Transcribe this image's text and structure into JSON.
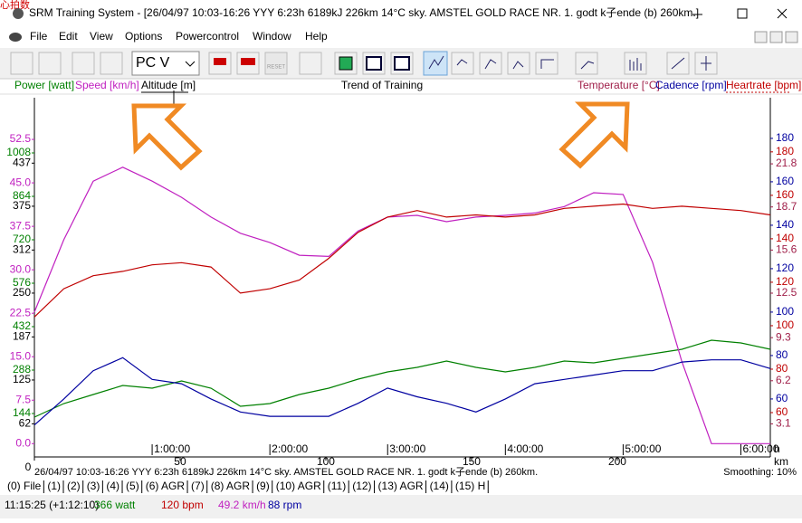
{
  "window": {
    "corner_text": "心拍数",
    "title": "SRM Training System - [26/04/97 10:03-16:26 YYY 6:23h 6189kJ 226km 14°C sky. AMSTEL GOLD RACE NR. 1. godt k子ende (b) 260km.]",
    "menu": [
      "File",
      "Edit",
      "View",
      "Options",
      "Powercontrol",
      "Window",
      "Help"
    ],
    "selector": "PC V",
    "reset_button": "RESET"
  },
  "chart_data": {
    "type": "line",
    "title": "Trend of Training",
    "x": [
      0,
      0.25,
      0.5,
      0.75,
      1,
      1.25,
      1.5,
      1.75,
      2,
      2.25,
      2.5,
      2.75,
      3,
      3.25,
      3.5,
      3.75,
      4,
      4.25,
      4.5,
      4.75,
      5,
      5.25,
      5.5,
      5.75,
      6,
      6.25
    ],
    "xlim": [
      0,
      6.25
    ],
    "x_unit": "h",
    "xticks": [
      {
        "value": 1,
        "label": "1:00:00"
      },
      {
        "value": 2,
        "label": "2:00:00"
      },
      {
        "value": 3,
        "label": "3:00:00"
      },
      {
        "value": 4,
        "label": "4:00:00"
      },
      {
        "value": 5,
        "label": "5:00:00"
      },
      {
        "value": 6,
        "label": "6:00:00"
      }
    ],
    "x2lim": [
      0,
      252.5
    ],
    "x2_unit": "km",
    "x2ticks": [
      0,
      50,
      100,
      150,
      200
    ],
    "axes": [
      {
        "label": "Power [watt]",
        "color": "#008000",
        "side": "left",
        "ylim": [
          0,
          1170
        ],
        "yticks": [
          144,
          288,
          432,
          576,
          720,
          864,
          1008
        ],
        "values": [
          132,
          177,
          207,
          237,
          228,
          252,
          228,
          168,
          177,
          207,
          228,
          258,
          282,
          297,
          318,
          297,
          282,
          297,
          318,
          312,
          327,
          342,
          357,
          387,
          378,
          357
        ]
      },
      {
        "label": "Speed [km/h]",
        "color": "#c020c0",
        "side": "left",
        "ylim": [
          -2.3,
          58.6
        ],
        "yticks": [
          {
            "value": 0,
            "label": "0.0"
          },
          7.5,
          {
            "value": 15,
            "label": "15.0"
          },
          22.5,
          {
            "value": 30,
            "label": "30.0"
          },
          37.5,
          {
            "value": 45,
            "label": "45.0"
          },
          52.5
        ],
        "values": [
          22.7,
          35.2,
          45.3,
          47.7,
          45.3,
          42.5,
          39.1,
          36.3,
          34.7,
          32.5,
          32.3,
          36.7,
          39.1,
          39.4,
          38.3,
          39.1,
          39.4,
          39.8,
          40.9,
          43.3,
          43.0,
          31.3,
          14.1,
          0,
          0,
          0
        ]
      },
      {
        "label": "Altitude [m]",
        "color": "#000000",
        "side": "left",
        "ylim": [
          14.3,
          522
        ],
        "yticks": [
          62,
          125,
          187,
          250,
          312,
          375,
          437
        ]
      },
      {
        "label": "Temperature [°C]",
        "color": "#a0204a",
        "side": "right",
        "ylim": [
          0.72,
          26.1
        ],
        "yticks": [
          3.1,
          6.2,
          9.3,
          12.5,
          15.6,
          18.7,
          21.8
        ]
      },
      {
        "label": "Cadence [rpm]",
        "color": "#0000a0",
        "side": "right",
        "ylim": [
          33.3,
          195.8
        ],
        "yticks": [
          60,
          80,
          100,
          120,
          140,
          160,
          180
        ],
        "values": [
          48,
          60,
          73,
          79,
          69,
          67,
          60,
          54,
          52,
          52,
          52,
          58,
          65,
          61,
          58,
          54,
          60,
          67,
          69,
          71,
          73,
          73,
          77,
          78,
          78,
          74
        ]
      },
      {
        "label": "Heartrate [bpm]",
        "color": "#c00000",
        "side": "right",
        "ylim": [
          39.6,
          202
        ],
        "yticks": [
          60,
          80,
          100,
          120,
          140,
          160,
          180
        ],
        "values": [
          104,
          117,
          123,
          125,
          128,
          129,
          127,
          115,
          117,
          121,
          131,
          143,
          150,
          153,
          150,
          151,
          150,
          151,
          154,
          155,
          156,
          154,
          155,
          154,
          153,
          151
        ]
      }
    ]
  },
  "info_line": "26/04/97 10:03-16:26 YYY 6:23h 6189kJ 226km 14°C sky. AMSTEL GOLD RACE NR. 1. godt k子ende (b) 260km.",
  "smoothing": "Smoothing: 10%",
  "tabs": [
    "(0) File",
    "(1)",
    "(2)",
    "(3)",
    "(4)",
    "(5)",
    "(6) AGR",
    "(7)",
    "(8) AGR",
    "(9)",
    "(10) AGR",
    "(11)",
    "(12)",
    "(13) AGR",
    "(14)",
    "(15) H"
  ],
  "status": [
    "11:15:25 (+1:12:10)",
    "366 watt",
    "120 bpm",
    "49.2 km/h",
    "88 rpm"
  ]
}
